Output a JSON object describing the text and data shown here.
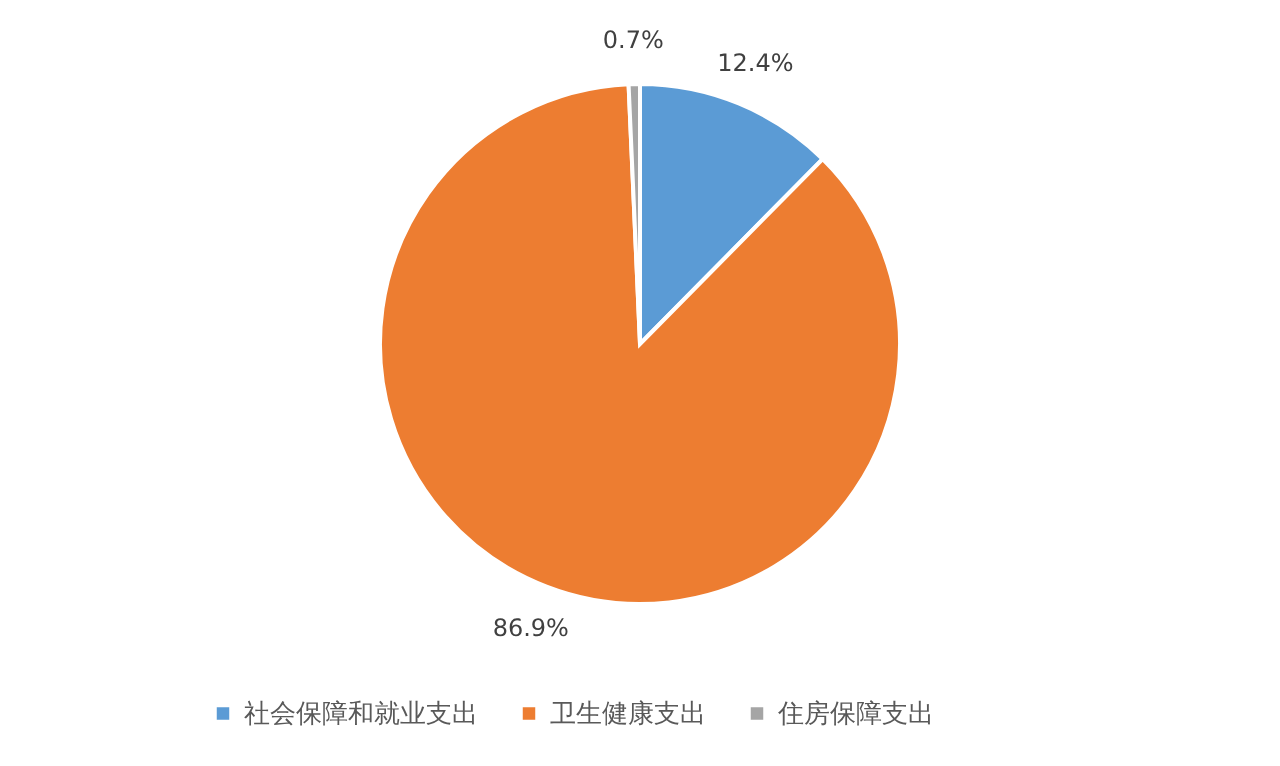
{
  "chart_data": {
    "type": "pie",
    "categories": [
      "社会保障和就业支出",
      "卫生健康支出",
      "住房保障支出"
    ],
    "values": [
      12.4,
      86.9,
      0.7
    ],
    "colors": [
      "#5b9bd5",
      "#ed7d31",
      "#a5a5a5"
    ],
    "value_labels": [
      "12.4%",
      "86.9%",
      "0.7%"
    ],
    "legend": "bottom"
  }
}
